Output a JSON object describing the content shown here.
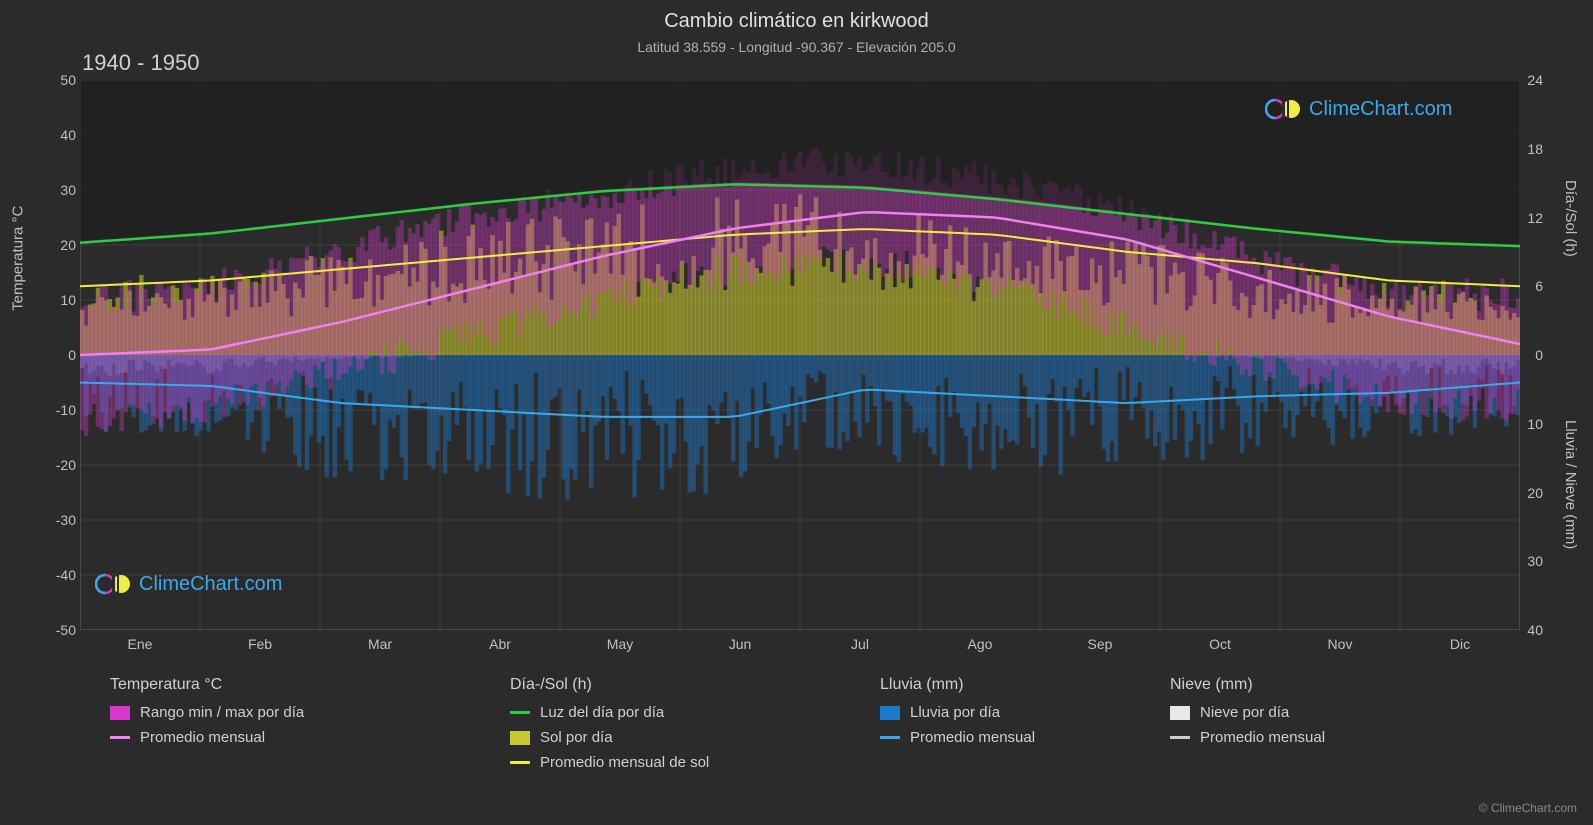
{
  "title": "Cambio climático en kirkwood",
  "subtitle": "Latitud 38.559 - Longitud -90.367 - Elevación 205.0",
  "period": "1940 - 1950",
  "logo_text": "ClimeChart.com",
  "copyright": "© ClimeChart.com",
  "colors": {
    "bg": "#2b2b2b",
    "grid": "#666666",
    "text": "#d4d4d4",
    "temp_range": "#d838c8",
    "temp_avg": "#ee82ee",
    "daylight": "#2ecc40",
    "sun": "#c8c832",
    "sun_avg": "#eeee44",
    "rain": "#1e78c8",
    "rain_avg": "#3ba9e8",
    "snow": "#e8e8e8",
    "snow_avg": "#cccccc",
    "logo_pink": "#d838c8",
    "logo_blue": "#3ba9e8",
    "logo_yellow": "#eeee44"
  },
  "months": [
    "Ene",
    "Feb",
    "Mar",
    "Abr",
    "May",
    "Jun",
    "Jul",
    "Ago",
    "Sep",
    "Oct",
    "Nov",
    "Dic"
  ],
  "y_left": {
    "label": "Temperatura °C",
    "min": -50,
    "max": 50,
    "ticks": [
      -50,
      -40,
      -30,
      -20,
      -10,
      0,
      10,
      20,
      30,
      40,
      50
    ]
  },
  "y_right_top": {
    "label": "Día-/Sol (h)",
    "min": 0,
    "max": 24,
    "ticks": [
      0,
      6,
      12,
      18,
      24
    ]
  },
  "y_right_bottom": {
    "label": "Lluvia / Nieve (mm)",
    "min": 0,
    "max": 40,
    "ticks": [
      0,
      10,
      20,
      30,
      40
    ]
  },
  "series": {
    "daylight_hours": [
      9.8,
      10.6,
      11.9,
      13.2,
      14.3,
      14.9,
      14.6,
      13.6,
      12.3,
      11.0,
      9.9,
      9.5
    ],
    "sun_avg_hours": [
      6,
      6.5,
      7.5,
      8.5,
      9.5,
      10.5,
      11,
      10.5,
      9,
      8,
      6.5,
      6
    ],
    "temp_avg_c": [
      0,
      1,
      6,
      12,
      18,
      23,
      26,
      25,
      21,
      14,
      7,
      2
    ],
    "temp_min_c": [
      -12,
      -10,
      -4,
      2,
      8,
      14,
      17,
      16,
      10,
      3,
      -3,
      -9
    ],
    "temp_max_c": [
      10,
      12,
      18,
      24,
      28,
      32,
      35,
      34,
      30,
      24,
      16,
      11
    ],
    "rain_avg_mm": [
      4,
      4.5,
      7,
      8,
      9,
      9,
      5,
      6,
      7,
      6,
      5.5,
      4
    ],
    "sun_bar_hours": [
      5,
      6,
      7,
      8.5,
      9.5,
      10.5,
      11,
      10,
      8.5,
      7.5,
      6,
      5
    ],
    "rain_bar_mm": [
      6,
      6,
      9,
      10,
      11,
      11,
      7,
      8,
      9,
      8,
      7,
      6
    ],
    "snow_bar_mm": [
      2,
      1.5,
      0.5,
      0,
      0,
      0,
      0,
      0,
      0,
      0,
      0.3,
      1.5
    ]
  },
  "legend": {
    "temp_head": "Temperatura °C",
    "temp_range": "Rango min / max por día",
    "temp_avg": "Promedio mensual",
    "day_head": "Día-/Sol (h)",
    "daylight": "Luz del día por día",
    "sun": "Sol por día",
    "sun_avg": "Promedio mensual de sol",
    "rain_head": "Lluvia (mm)",
    "rain": "Lluvia por día",
    "rain_avg": "Promedio mensual",
    "snow_head": "Nieve (mm)",
    "snow": "Nieve por día",
    "snow_avg": "Promedio mensual"
  }
}
